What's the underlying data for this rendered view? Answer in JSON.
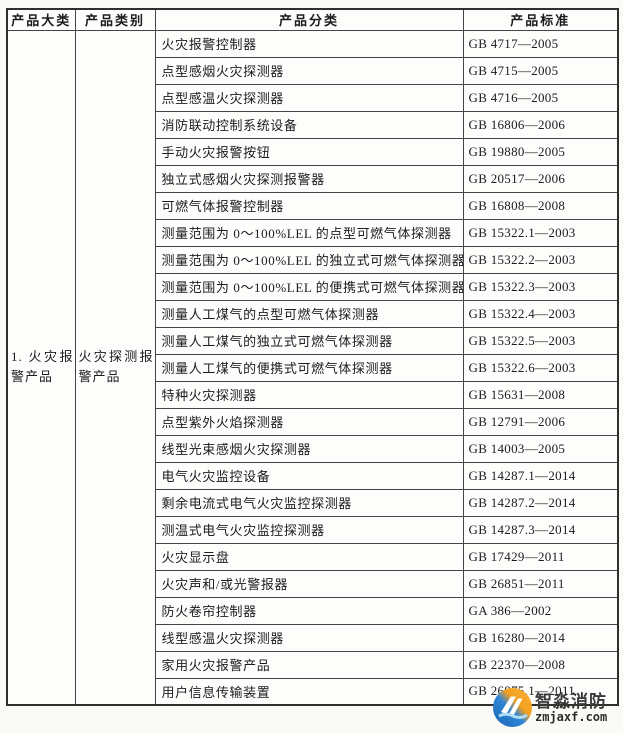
{
  "table": {
    "headers": [
      "产品大类",
      "产品类别",
      "产品分类",
      "产品标准"
    ],
    "category": "1. 火灾报警产品",
    "subcategory": "火灾探测报警产品",
    "rows": [
      {
        "classification": "火灾报警控制器",
        "standard": "GB 4717—2005"
      },
      {
        "classification": "点型感烟火灾探测器",
        "standard": "GB 4715—2005"
      },
      {
        "classification": "点型感温火灾探测器",
        "standard": "GB 4716—2005"
      },
      {
        "classification": "消防联动控制系统设备",
        "standard": "GB 16806—2006"
      },
      {
        "classification": "手动火灾报警按钮",
        "standard": "GB 19880—2005"
      },
      {
        "classification": "独立式感烟火灾探测报警器",
        "standard": "GB 20517—2006"
      },
      {
        "classification": "可燃气体报警控制器",
        "standard": "GB 16808—2008"
      },
      {
        "classification": "测量范围为 0～100%LEL 的点型可燃气体探测器",
        "standard": "GB 15322.1—2003"
      },
      {
        "classification": "测量范围为 0～100%LEL 的独立式可燃气体探测器",
        "standard": "GB 15322.2—2003"
      },
      {
        "classification": "测量范围为 0～100%LEL 的便携式可燃气体探测器",
        "standard": "GB 15322.3—2003"
      },
      {
        "classification": "测量人工煤气的点型可燃气体探测器",
        "standard": "GB 15322.4—2003"
      },
      {
        "classification": "测量人工煤气的独立式可燃气体探测器",
        "standard": "GB 15322.5—2003"
      },
      {
        "classification": "测量人工煤气的便携式可燃气体探测器",
        "standard": "GB 15322.6—2003"
      },
      {
        "classification": "特种火灾探测器",
        "standard": "GB 15631—2008"
      },
      {
        "classification": "点型紫外火焰探测器",
        "standard": "GB 12791—2006"
      },
      {
        "classification": "线型光束感烟火灾探测器",
        "standard": "GB 14003—2005"
      },
      {
        "classification": "电气火灾监控设备",
        "standard": "GB 14287.1—2014"
      },
      {
        "classification": "剩余电流式电气火灾监控探测器",
        "standard": "GB 14287.2—2014"
      },
      {
        "classification": "测温式电气火灾监控探测器",
        "standard": "GB 14287.3—2014"
      },
      {
        "classification": "火灾显示盘",
        "standard": "GB 17429—2011"
      },
      {
        "classification": "火灾声和/或光警报器",
        "standard": "GB 26851—2011"
      },
      {
        "classification": "防火卷帘控制器",
        "standard": "GA 386—2002"
      },
      {
        "classification": "线型感温火灾探测器",
        "standard": "GB 16280—2014"
      },
      {
        "classification": "家用火灾报警产品",
        "standard": "GB 22370—2008"
      },
      {
        "classification": "用户信息传输装置",
        "standard": "GB 26875.1—2011"
      }
    ]
  },
  "watermark": {
    "name": "智淼消防",
    "domain": "zmjaxf.com",
    "logo_colors": {
      "orange": "#f4a01f",
      "blue": "#2176c7",
      "wave": "#addcf5"
    }
  }
}
